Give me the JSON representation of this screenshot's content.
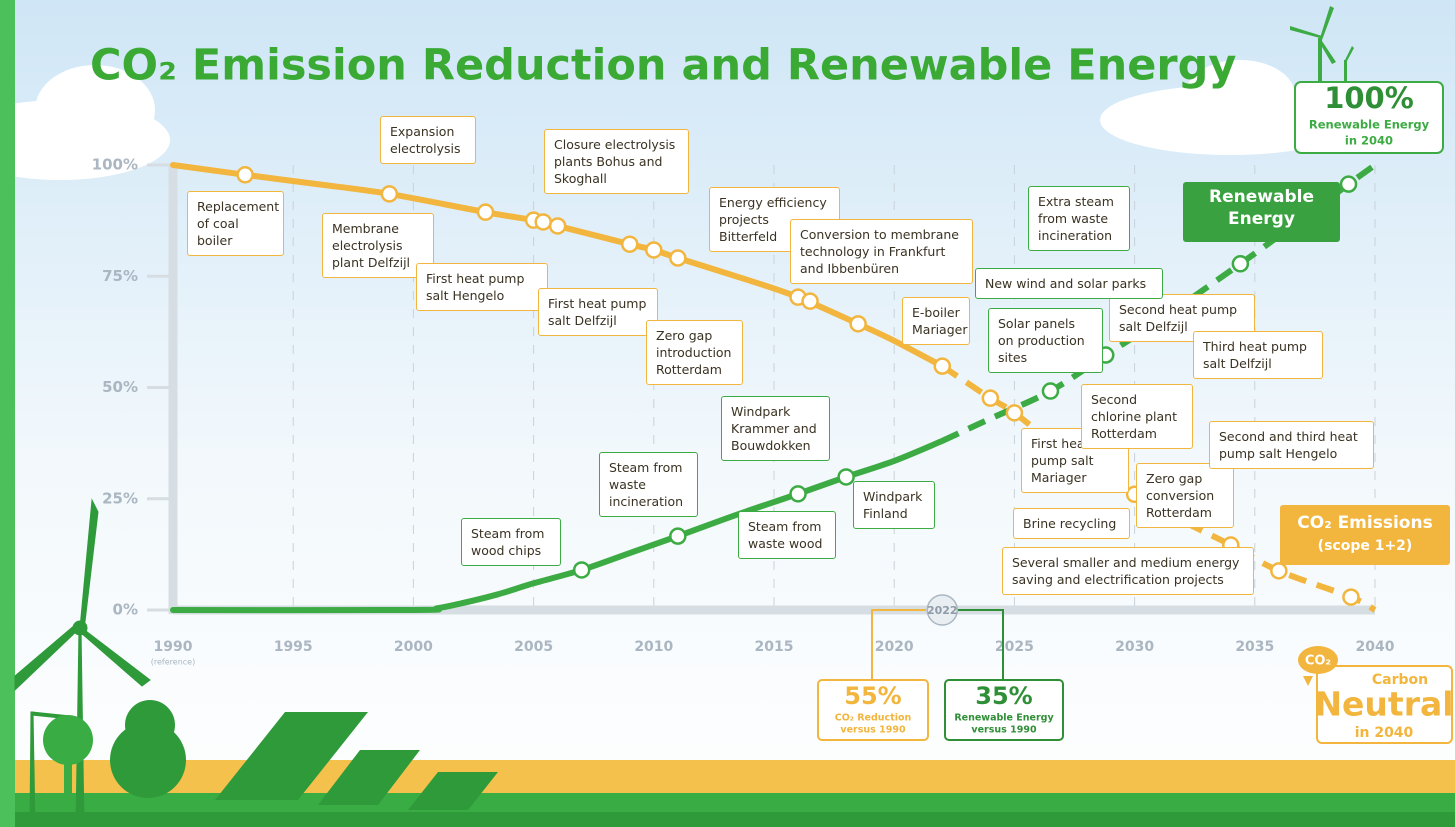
{
  "chart_data": {
    "type": "line",
    "title": "CO₂ Emission Reduction and Renewable Energy",
    "xlim": [
      1990,
      2040
    ],
    "ylim": [
      0,
      100
    ],
    "xticks": [
      1990,
      1995,
      2000,
      2005,
      2010,
      2015,
      2020,
      2025,
      2030,
      2035,
      2040
    ],
    "xtick_note": "(reference)",
    "yticks": [
      {
        "value": 0,
        "label": "0%"
      },
      {
        "value": 25,
        "label": "25%"
      },
      {
        "value": 50,
        "label": "50%"
      },
      {
        "value": 75,
        "label": "75%"
      },
      {
        "value": 100,
        "label": "100%"
      }
    ],
    "grid": "x",
    "current_year": 2022,
    "series": [
      {
        "name": "CO₂ Emissions",
        "note": "(scope 1+2)",
        "color": "#f2b53e",
        "x": [
          1990,
          1993,
          1996,
          1999,
          2003,
          2005,
          2006,
          2009,
          2010,
          2011,
          2014,
          2016,
          2018.5,
          2020,
          2022,
          2024,
          2025,
          2027,
          2030,
          2032,
          2034,
          2036,
          2039,
          2040
        ],
        "values": [
          100,
          97.8,
          95.7,
          93.5,
          89.4,
          87.6,
          86.3,
          82.2,
          80.9,
          79.1,
          74,
          70.3,
          64.3,
          60.5,
          54.8,
          47.6,
          44.3,
          36,
          26,
          20,
          14.6,
          8.8,
          2.9,
          0
        ],
        "milestone_x": [
          1993,
          1999,
          2003,
          2005,
          2005.4,
          2006,
          2009,
          2010,
          2011,
          2016,
          2016.5,
          2018.5,
          2022,
          2024,
          2025,
          2030,
          2034,
          2036,
          2039
        ],
        "milestone_values": [
          97.8,
          93.5,
          89.4,
          87.6,
          87.2,
          86.3,
          82.2,
          80.9,
          79.1,
          70.3,
          69.4,
          64.3,
          54.8,
          47.6,
          44.3,
          26,
          14.6,
          8.8,
          2.9
        ]
      },
      {
        "name": "Renewable Energy",
        "color": "#3dab43",
        "x": [
          1990,
          2000,
          2001,
          2002,
          2003.5,
          2005,
          2007,
          2009,
          2011,
          2013.5,
          2016,
          2018,
          2020,
          2022,
          2024,
          2026.5,
          2028.8,
          2031,
          2034.4,
          2037,
          2038.9,
          2040
        ],
        "values": [
          0,
          0,
          0.4,
          1.5,
          3.5,
          6,
          9,
          12.8,
          16.6,
          21.5,
          26.1,
          29.9,
          33.5,
          38,
          43,
          49.2,
          57.3,
          65,
          77.8,
          88,
          95.7,
          100
        ],
        "milestone_x": [
          2007,
          2011,
          2016,
          2018,
          2026.5,
          2028.8,
          2034.4,
          2038.9
        ],
        "milestone_values": [
          9,
          16.6,
          26.1,
          29.9,
          49.2,
          57.3,
          77.8,
          95.7
        ]
      }
    ],
    "annotations": [
      {
        "text": "Replacement of coal boiler",
        "color": "#f2b53e"
      },
      {
        "text": "Expansion electrolysis",
        "color": "#f2b53e"
      },
      {
        "text": "Membrane electrolysis plant Delfzijl",
        "color": "#f2b53e"
      },
      {
        "text": "First heat pump salt Hengelo",
        "color": "#f2b53e"
      },
      {
        "text": "First heat pump salt Delfzijl",
        "color": "#f2b53e"
      },
      {
        "text": "Closure electrolysis plants Bohus and Skoghall",
        "color": "#f2b53e"
      },
      {
        "text": "Zero gap introduction Rotterdam",
        "color": "#f2b53e"
      },
      {
        "text": "Energy efficiency projects Bitterfeld",
        "color": "#f2b53e"
      },
      {
        "text": "Conversion to membrane technology in Frankfurt and Ibbenbüren",
        "color": "#f2b53e"
      },
      {
        "text": "E-boiler Mariager",
        "color": "#f2b53e"
      },
      {
        "text": "First heat pump salt Mariager",
        "color": "#f2b53e"
      },
      {
        "text": "Second chlorine plant Rotterdam",
        "color": "#f2b53e"
      },
      {
        "text": "Zero gap conversion Rotterdam",
        "color": "#f2b53e"
      },
      {
        "text": "Second heat pump salt Delfzijl",
        "color": "#f2b53e"
      },
      {
        "text": "Third heat pump salt Delfzijl",
        "color": "#f2b53e"
      },
      {
        "text": "Second and third heat pump salt Hengelo",
        "color": "#f2b53e"
      },
      {
        "text": "Brine recycling",
        "color": "#f2b53e"
      },
      {
        "text": "Several smaller and medium energy saving and electrification projects",
        "color": "#f2b53e"
      },
      {
        "text": "Extra steam from waste incineration",
        "color": "#3dab43"
      },
      {
        "text": "New wind and solar parks",
        "color": "#3dab43"
      },
      {
        "text": "Solar panels on production sites",
        "color": "#3dab43"
      },
      {
        "text": "Windpark Krammer and Bouwdokken",
        "color": "#3dab43"
      },
      {
        "text": "Steam from waste incineration",
        "color": "#3dab43"
      },
      {
        "text": "Steam from wood chips",
        "color": "#3dab43"
      },
      {
        "text": "Steam from waste wood",
        "color": "#3dab43"
      },
      {
        "text": "Windpark Finland",
        "color": "#3dab43"
      }
    ],
    "targets": [
      {
        "big": "100%",
        "line1": "Renewable Energy",
        "line2": "in 2040"
      },
      {
        "big": "55%",
        "line1": "CO₂ Reduction",
        "line2": "versus 1990"
      },
      {
        "big": "35%",
        "line1": "Renewable Energy",
        "line2": "versus 1990"
      }
    ],
    "carbon_neutral": {
      "icon": "CO₂",
      "top": "Carbon",
      "big": "Neutral",
      "bottom": "in 2040"
    }
  }
}
